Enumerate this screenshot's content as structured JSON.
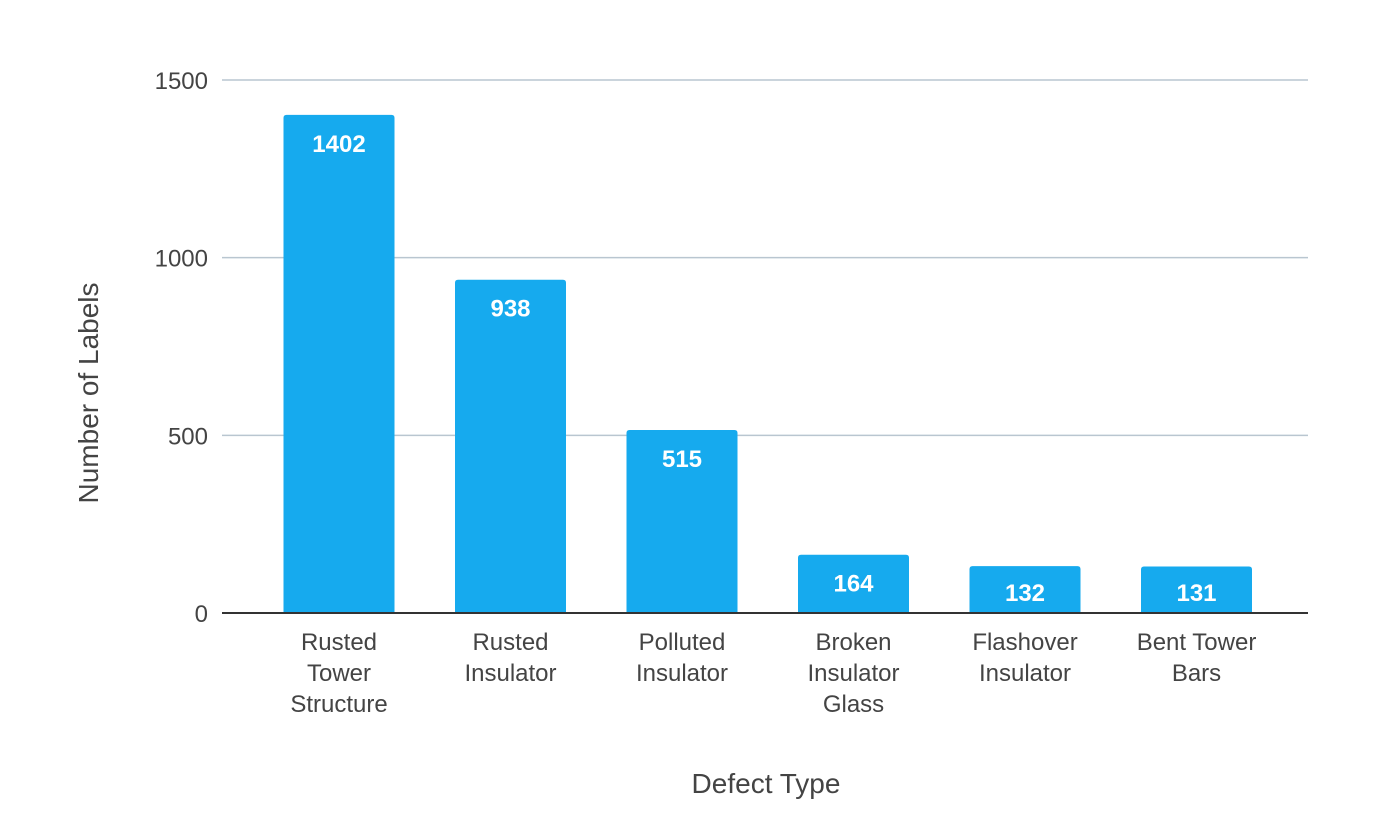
{
  "chart_data": {
    "type": "bar",
    "categories": [
      [
        "Rusted",
        "Tower",
        "Structure"
      ],
      [
        "Rusted",
        "Insulator"
      ],
      [
        "Polluted",
        "Insulator"
      ],
      [
        "Broken",
        "Insulator",
        "Glass"
      ],
      [
        "Flashover",
        "Insulator"
      ],
      [
        "Bent Tower",
        "Bars"
      ]
    ],
    "values": [
      1402,
      938,
      515,
      164,
      132,
      131
    ],
    "data_labels": [
      "1402",
      "938",
      "515",
      "164",
      "132",
      "131"
    ],
    "xlabel": "Defect Type",
    "ylabel": "Number of Labels",
    "ylim": [
      0,
      1500
    ],
    "yticks": [
      0,
      500,
      1000,
      1500
    ],
    "ytick_labels": [
      "0",
      "500",
      "1000",
      "1500"
    ],
    "grid": true,
    "legend": "none",
    "bar_color": "#16aaee"
  }
}
